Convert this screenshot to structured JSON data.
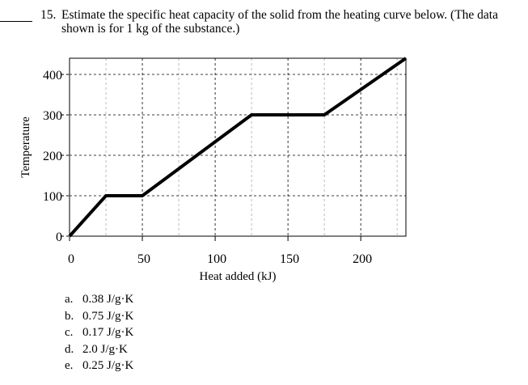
{
  "question": {
    "number": "15.",
    "text_line1": "Estimate the specific heat capacity of the solid from the heating curve below. (The data",
    "text_line2": "shown is for 1 kg of the substance.)"
  },
  "chart_data": {
    "type": "line",
    "xlabel": "Heat added (kJ)",
    "ylabel": "Temperature",
    "xlim": [
      0,
      231
    ],
    "ylim": [
      0,
      440
    ],
    "xticks": [
      0,
      50,
      100,
      150,
      200
    ],
    "yticks": [
      0,
      100,
      200,
      300,
      400
    ],
    "x_minor_grid": [
      25,
      75,
      125,
      175,
      225
    ],
    "grid": true,
    "line_color": "#000000",
    "x": [
      0,
      25,
      50,
      125,
      175,
      231
    ],
    "y": [
      0,
      100,
      100,
      300,
      300,
      440
    ]
  },
  "options": [
    {
      "letter": "a.",
      "text": "0.38 J/g·K"
    },
    {
      "letter": "b.",
      "text": "0.75 J/g·K"
    },
    {
      "letter": "c.",
      "text": "0.17 J/g·K"
    },
    {
      "letter": "d.",
      "text": "2.0 J/g·K"
    },
    {
      "letter": "e.",
      "text": "0.25 J/g·K"
    }
  ]
}
